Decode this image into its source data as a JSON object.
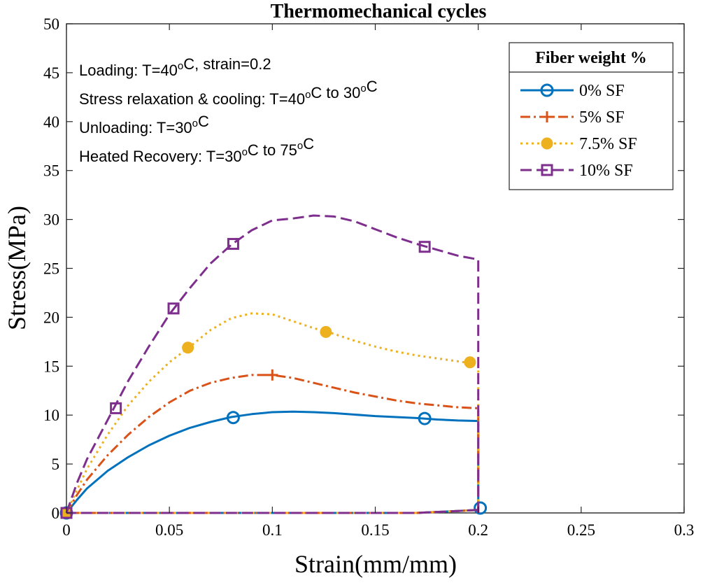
{
  "chart_data": {
    "type": "line",
    "title": "Thermomechanical cycles",
    "xlabel": "Strain(mm/mm)",
    "ylabel": "Stress(MPa)",
    "xlim": [
      0,
      0.3
    ],
    "ylim": [
      0,
      50
    ],
    "xticks": [
      0,
      0.05,
      0.1,
      0.15,
      0.2,
      0.25,
      0.3
    ],
    "xtick_labels": [
      "0",
      "0.05",
      "0.1",
      "0.15",
      "0.2",
      "0.25",
      "0.3"
    ],
    "yticks": [
      0,
      5,
      10,
      15,
      20,
      25,
      30,
      35,
      40,
      45,
      50
    ],
    "ytick_labels": [
      "0",
      "5",
      "10",
      "15",
      "20",
      "25",
      "30",
      "35",
      "40",
      "45",
      "50"
    ],
    "grid": false,
    "legend_title": "Fiber weight %",
    "legend_position": "top-right",
    "annotations": [
      {
        "pre": "Loading: T=40",
        "sup1": "o",
        "mid": "C, strain=0.2",
        "sup2": "",
        "post": ""
      },
      {
        "pre": "Stress relaxation & cooling: T=40",
        "sup1": "o",
        "mid": "C to 30",
        "sup2": "o",
        "post": "C"
      },
      {
        "pre": "Unloading: T=30",
        "sup1": "o",
        "mid": "C",
        "sup2": "",
        "post": ""
      },
      {
        "pre": "Heated Recovery: T=30",
        "sup1": "o",
        "mid": "C to 75",
        "sup2": "o",
        "post": "C"
      }
    ],
    "series": [
      {
        "name": "0% SF",
        "color": "#0072BD",
        "dash": "solid",
        "marker": "circle",
        "x": [
          0,
          0.005,
          0.01,
          0.02,
          0.03,
          0.04,
          0.05,
          0.06,
          0.07,
          0.08,
          0.09,
          0.1,
          0.11,
          0.12,
          0.13,
          0.14,
          0.15,
          0.16,
          0.17,
          0.18,
          0.19,
          0.2
        ],
        "y": [
          0,
          1.3,
          2.5,
          4.3,
          5.7,
          6.9,
          7.9,
          8.7,
          9.3,
          9.8,
          10.1,
          10.3,
          10.35,
          10.3,
          10.2,
          10.05,
          9.9,
          9.8,
          9.7,
          9.55,
          9.45,
          9.4
        ],
        "markers_x": [
          0,
          0.081,
          0.174,
          0.201
        ],
        "markers_y": [
          0,
          9.75,
          9.65,
          0.5
        ]
      },
      {
        "name": "5% SF",
        "color": "#D95319",
        "dash": "dashdot",
        "marker": "plus",
        "x": [
          0,
          0.005,
          0.01,
          0.02,
          0.03,
          0.04,
          0.05,
          0.06,
          0.07,
          0.08,
          0.09,
          0.1,
          0.11,
          0.12,
          0.13,
          0.14,
          0.15,
          0.16,
          0.17,
          0.18,
          0.19,
          0.2
        ],
        "y": [
          0,
          1.8,
          3.4,
          5.9,
          8.0,
          9.8,
          11.3,
          12.5,
          13.3,
          13.8,
          14.1,
          14.1,
          13.8,
          13.3,
          12.8,
          12.3,
          11.9,
          11.5,
          11.2,
          11.0,
          10.8,
          10.7
        ],
        "markers_x": [
          0,
          0.1
        ],
        "markers_y": [
          0,
          14.1
        ]
      },
      {
        "name": "7.5% SF",
        "color": "#EDB120",
        "dash": "dotted",
        "marker": "dot",
        "x": [
          0,
          0.005,
          0.01,
          0.02,
          0.03,
          0.04,
          0.05,
          0.06,
          0.07,
          0.08,
          0.09,
          0.1,
          0.11,
          0.12,
          0.13,
          0.14,
          0.15,
          0.16,
          0.17,
          0.18,
          0.19,
          0.2
        ],
        "y": [
          0,
          2.3,
          4.5,
          8.0,
          11.0,
          13.4,
          15.4,
          17.0,
          18.7,
          19.9,
          20.4,
          20.3,
          19.6,
          18.9,
          18.3,
          17.6,
          17.0,
          16.5,
          16.1,
          15.8,
          15.5,
          15.2
        ],
        "markers_x": [
          0,
          0.059,
          0.126,
          0.196
        ],
        "markers_y": [
          0,
          16.9,
          18.5,
          15.4
        ]
      },
      {
        "name": "10% SF",
        "color": "#7E2F8E",
        "dash": "dashed",
        "marker": "square",
        "x": [
          0,
          0.005,
          0.01,
          0.02,
          0.03,
          0.04,
          0.05,
          0.06,
          0.07,
          0.08,
          0.09,
          0.1,
          0.11,
          0.12,
          0.13,
          0.14,
          0.15,
          0.16,
          0.17,
          0.18,
          0.19,
          0.2
        ],
        "y": [
          0,
          3.0,
          5.5,
          9.5,
          13.5,
          17.0,
          20.3,
          23.0,
          25.5,
          27.4,
          28.9,
          29.9,
          30.1,
          30.4,
          30.3,
          29.8,
          29.0,
          28.2,
          27.5,
          26.9,
          26.3,
          25.9
        ],
        "markers_x": [
          0,
          0.024,
          0.052,
          0.081,
          0.174
        ],
        "markers_y": [
          0,
          10.7,
          20.9,
          27.5,
          27.2
        ]
      }
    ],
    "unloading_drop": {
      "x": 0.2
    },
    "recovery_path": {
      "x": [
        0.2,
        0.19,
        0.18,
        0.175,
        0.17,
        0.15,
        0.1,
        0.05,
        0
      ],
      "y": [
        0.3,
        0.2,
        0.1,
        0.05,
        0,
        0,
        0,
        0,
        0
      ]
    }
  }
}
